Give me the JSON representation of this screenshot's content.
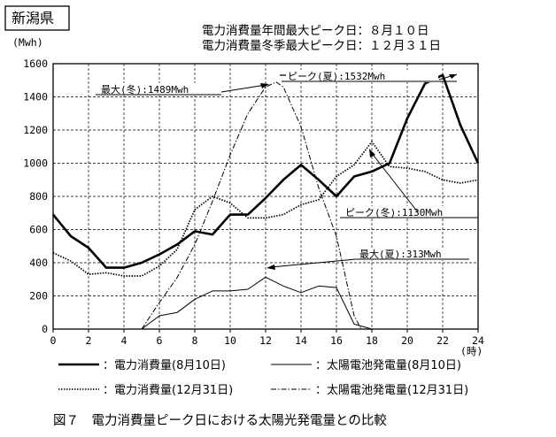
{
  "page": {
    "region_label": "新潟県",
    "header_line1": "電力消費量年間最大ピーク日：８月１０日",
    "header_line2": "電力消費量冬季最大ピーク日：１２月３１日",
    "unit_label": "(Mwh)",
    "x_unit_label": "(時)",
    "caption": "図７　電力消費量ピーク日における太陽光発電量との比較"
  },
  "annotations": {
    "peak_summer": "ピーク(夏):1532Mwh",
    "max_winter": "最大(冬):1489Mwh",
    "peak_winter": "ピーク(冬):1130Mwh",
    "max_summer": "最大(夏):313Mwh"
  },
  "legend": [
    {
      "marker": "：電力消費量(8月10日)"
    },
    {
      "marker": "：太陽電池発電量(8月10日)"
    },
    {
      "marker": "：電力消費量(12月31日)"
    },
    {
      "marker": "：太陽電池発電量(12月31日)"
    }
  ],
  "chart_data": {
    "type": "line",
    "title": "電力消費量ピーク日における太陽光発電量との比較",
    "xlabel": "(時)",
    "ylabel": "(Mwh)",
    "xlim": [
      0,
      24
    ],
    "ylim": [
      0,
      1600
    ],
    "xticks": [
      0,
      2,
      4,
      6,
      8,
      10,
      12,
      14,
      16,
      18,
      20,
      22,
      24
    ],
    "yticks": [
      0,
      200,
      400,
      600,
      800,
      1000,
      1200,
      1400,
      1600
    ],
    "grid": true,
    "series": [
      {
        "name": "電力消費量(8月10日)",
        "style": "solid-thick",
        "x": [
          0,
          1,
          2,
          3,
          4,
          5,
          6,
          7,
          8,
          9,
          10,
          11,
          12,
          13,
          14,
          15,
          16,
          17,
          18,
          19,
          20,
          21,
          22,
          23,
          24
        ],
        "y": [
          690,
          560,
          490,
          370,
          370,
          400,
          450,
          510,
          590,
          570,
          690,
          690,
          790,
          900,
          990,
          900,
          800,
          920,
          950,
          1000,
          1270,
          1480,
          1532,
          1230,
          1000
        ]
      },
      {
        "name": "太陽電池発電量(8月10日)",
        "style": "solid-thin",
        "x": [
          5,
          6,
          7,
          8,
          9,
          10,
          11,
          12,
          13,
          14,
          15,
          16,
          17,
          18
        ],
        "y": [
          0,
          80,
          100,
          180,
          230,
          230,
          240,
          313,
          260,
          220,
          260,
          250,
          30,
          0
        ]
      },
      {
        "name": "電力消費量(12月31日)",
        "style": "dotted",
        "x": [
          0,
          1,
          2,
          3,
          4,
          5,
          6,
          7,
          8,
          9,
          10,
          11,
          12,
          13,
          14,
          15,
          16,
          17,
          18,
          19,
          20,
          21,
          22,
          23,
          24
        ],
        "y": [
          460,
          410,
          330,
          340,
          320,
          320,
          380,
          480,
          720,
          800,
          760,
          670,
          670,
          690,
          750,
          780,
          920,
          990,
          1130,
          980,
          970,
          950,
          900,
          880,
          900
        ]
      },
      {
        "name": "太陽電池発電量(12月31日)",
        "style": "dash-dot",
        "x": [
          5,
          6,
          7,
          8,
          9,
          10,
          11,
          12,
          12.6,
          13,
          14,
          15,
          16,
          17,
          17.4
        ],
        "y": [
          0,
          160,
          310,
          510,
          770,
          1050,
          1300,
          1460,
          1489,
          1460,
          1220,
          850,
          560,
          80,
          0
        ]
      }
    ]
  }
}
